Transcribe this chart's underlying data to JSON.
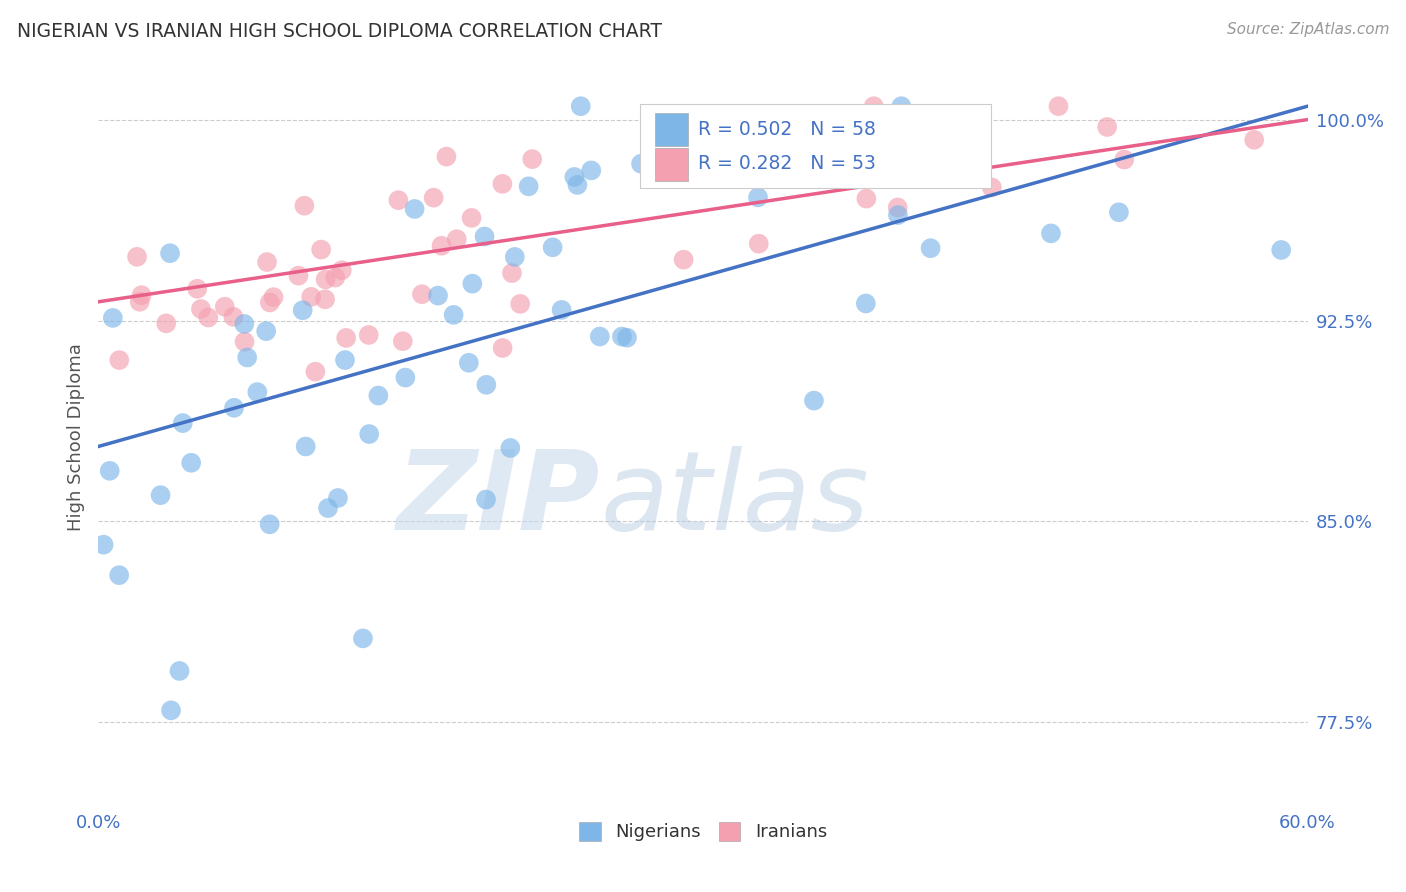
{
  "title": "NIGERIAN VS IRANIAN HIGH SCHOOL DIPLOMA CORRELATION CHART",
  "source": "Source: ZipAtlas.com",
  "ylabel": "High School Diploma",
  "x_min": 0.0,
  "x_max": 60.0,
  "y_min": 74.5,
  "y_max": 101.8,
  "x_ticks": [
    0.0,
    60.0
  ],
  "x_tick_labels": [
    "0.0%",
    "60.0%"
  ],
  "y_ticks": [
    77.5,
    85.0,
    92.5,
    100.0
  ],
  "y_tick_labels": [
    "77.5%",
    "85.0%",
    "92.5%",
    "100.0%"
  ],
  "nigerian_R": 0.502,
  "nigerian_N": 58,
  "iranian_R": 0.282,
  "iranian_N": 53,
  "nigerian_color": "#7EB6E8",
  "iranian_color": "#F4A0B0",
  "nigerian_line_color": "#4472C4",
  "iranian_line_color": "#E85F8A",
  "legend_label_nigerian": "Nigerians",
  "legend_label_iranian": "Iranians",
  "watermark_zip": "ZIP",
  "watermark_atlas": "atlas",
  "background_color": "#FFFFFF",
  "grid_color": "#CCCCCC",
  "nigerian_seed": 12,
  "iranian_seed": 7,
  "nig_line_y0": 87.8,
  "nig_line_y1": 100.5,
  "ira_line_y0": 93.2,
  "ira_line_y1": 100.0
}
